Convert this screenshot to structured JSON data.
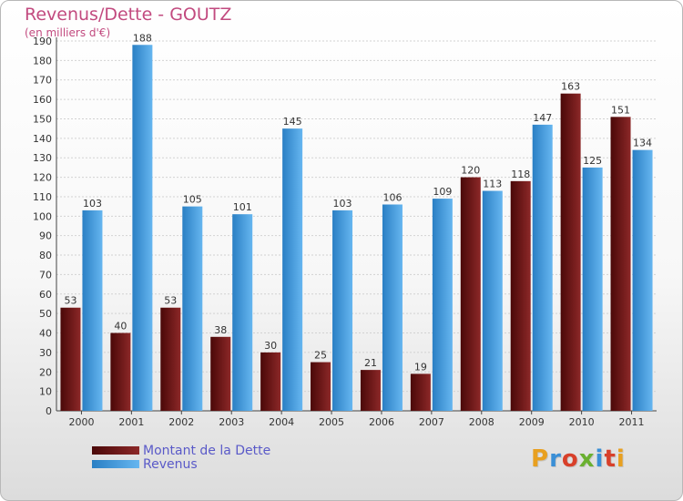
{
  "chart_data": {
    "type": "bar",
    "title": "Revenus/Dette - GOUTZ",
    "subtitle": "(en milliers d'€)",
    "categories": [
      "2000",
      "2001",
      "2002",
      "2003",
      "2004",
      "2005",
      "2006",
      "2007",
      "2008",
      "2009",
      "2010",
      "2011"
    ],
    "series": [
      {
        "name": "Montant de la Dette",
        "color": "#7a1a1a",
        "values": [
          53,
          40,
          53,
          38,
          30,
          25,
          21,
          19,
          120,
          118,
          163,
          151
        ]
      },
      {
        "name": "Revenus",
        "color": "#4ea6e8",
        "values": [
          103,
          188,
          105,
          101,
          145,
          103,
          106,
          109,
          113,
          147,
          125,
          134
        ]
      }
    ],
    "ylim": [
      0,
      190
    ],
    "yticks": [
      0,
      10,
      20,
      30,
      40,
      50,
      60,
      70,
      80,
      90,
      100,
      110,
      120,
      130,
      140,
      150,
      160,
      170,
      180,
      190
    ],
    "grid": true,
    "legend_position": "bottom-left"
  },
  "brand": {
    "letters": [
      "P",
      "r",
      "o",
      "x",
      "i",
      "t",
      "i"
    ],
    "colors": [
      "#e8a020",
      "#3a8fd6",
      "#d8402a",
      "#6ab030",
      "#3a8fd6",
      "#d8402a",
      "#e8a020"
    ]
  }
}
